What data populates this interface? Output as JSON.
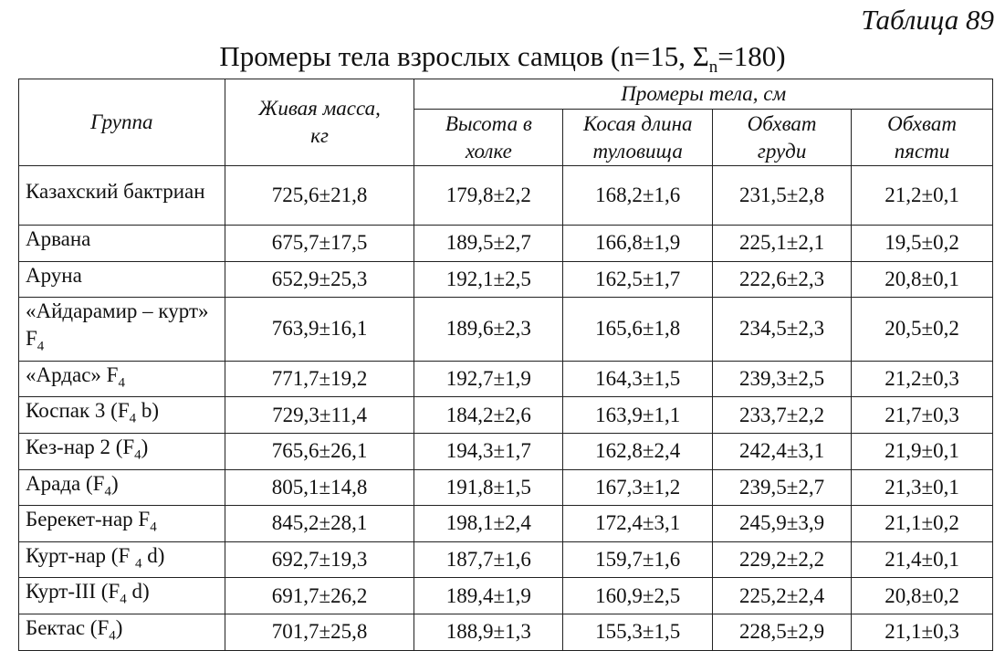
{
  "table_number": "Таблица 89",
  "title": {
    "main": "Промеры тела взрослых самцов (n=15, Σ",
    "sub": "n",
    "tail": "=180)"
  },
  "headers": {
    "group": "Группа",
    "mass": "Живая масса, кг",
    "body_measures": "Промеры тела, см",
    "height": "Высота в холке",
    "length": "Косая длина туловища",
    "chest": "Обхват груди",
    "pastern": "Обхват пясти"
  },
  "rows": [
    {
      "group": {
        "pre": "Казахский бактриан",
        "sub": "",
        "post": ""
      },
      "mass": "725,6±21,8",
      "height": "179,8±2,2",
      "length": "168,2±1,6",
      "chest": "231,5±2,8",
      "pastern": "21,2±0,1"
    },
    {
      "group": {
        "pre": "Арвана",
        "sub": "",
        "post": ""
      },
      "mass": "675,7±17,5",
      "height": "189,5±2,7",
      "length": "166,8±1,9",
      "chest": "225,1±2,1",
      "pastern": "19,5±0,2"
    },
    {
      "group": {
        "pre": "Аруна",
        "sub": "",
        "post": ""
      },
      "mass": "652,9±25,3",
      "height": "192,1±2,5",
      "length": "162,5±1,7",
      "chest": "222,6±2,3",
      "pastern": "20,8±0,1"
    },
    {
      "group": {
        "pre": "«Айдарамир – курт» F",
        "sub": "4",
        "post": ""
      },
      "mass": "763,9±16,1",
      "height": "189,6±2,3",
      "length": "165,6±1,8",
      "chest": "234,5±2,3",
      "pastern": "20,5±0,2"
    },
    {
      "group": {
        "pre": "«Ардас» F",
        "sub": "4",
        "post": ""
      },
      "mass": "771,7±19,2",
      "height": "192,7±1,9",
      "length": "164,3±1,5",
      "chest": "239,3±2,5",
      "pastern": "21,2±0,3"
    },
    {
      "group": {
        "pre": "Коспак 3 (F",
        "sub": "4",
        "post": " b)"
      },
      "mass": "729,3±11,4",
      "height": "184,2±2,6",
      "length": "163,9±1,1",
      "chest": "233,7±2,2",
      "pastern": "21,7±0,3"
    },
    {
      "group": {
        "pre": "Кез-нар 2 (F",
        "sub": "4",
        "post": ")"
      },
      "mass": "765,6±26,1",
      "height": "194,3±1,7",
      "length": "162,8±2,4",
      "chest": "242,4±3,1",
      "pastern": "21,9±0,1"
    },
    {
      "group": {
        "pre": "Арада (F",
        "sub": "4",
        "post": ")"
      },
      "mass": "805,1±14,8",
      "height": "191,8±1,5",
      "length": "167,3±1,2",
      "chest": "239,5±2,7",
      "pastern": "21,3±0,1"
    },
    {
      "group": {
        "pre": "Берекет-нар F",
        "sub": "4",
        "post": ""
      },
      "mass": "845,2±28,1",
      "height": "198,1±2,4",
      "length": "172,4±3,1",
      "chest": "245,9±3,9",
      "pastern": "21,1±0,2"
    },
    {
      "group": {
        "pre": "Курт-нар (F ",
        "sub": "4",
        "post": " d)"
      },
      "mass": "692,7±19,3",
      "height": "187,7±1,6",
      "length": "159,7±1,6",
      "chest": "229,2±2,2",
      "pastern": "21,4±0,1"
    },
    {
      "group": {
        "pre": "Курт-III (F",
        "sub": "4",
        "post": " d)"
      },
      "mass": "691,7±26,2",
      "height": "189,4±1,9",
      "length": "160,9±2,5",
      "chest": "225,2±2,4",
      "pastern": "20,8±0,2"
    },
    {
      "group": {
        "pre": "Бектас (F",
        "sub": "4",
        "post": ")"
      },
      "mass": "701,7±25,8",
      "height": "188,9±1,3",
      "length": "155,3±1,5",
      "chest": "228,5±2,9",
      "pastern": "21,1±0,3"
    }
  ]
}
